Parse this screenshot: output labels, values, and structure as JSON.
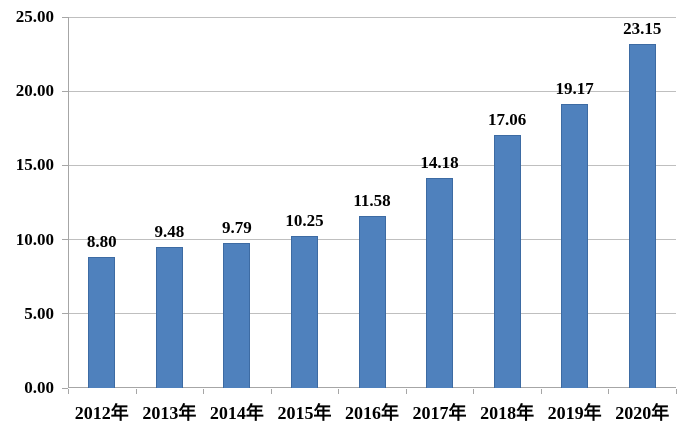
{
  "chart_data": {
    "type": "bar",
    "title": "",
    "xlabel": "",
    "ylabel": "",
    "categories": [
      "2012年",
      "2013年",
      "2014年",
      "2015年",
      "2016年",
      "2017年",
      "2018年",
      "2019年",
      "2020年"
    ],
    "values": [
      8.8,
      9.48,
      9.79,
      10.25,
      11.58,
      14.18,
      17.06,
      19.17,
      23.15
    ],
    "data_labels": [
      "8.80",
      "9.48",
      "9.79",
      "10.25",
      "11.58",
      "14.18",
      "17.06",
      "19.17",
      "23.15"
    ],
    "ylim": [
      0,
      25
    ],
    "ytick_interval": 5,
    "ytick_labels": [
      "0.00",
      "5.00",
      "10.00",
      "15.00",
      "20.00",
      "25.00"
    ],
    "grid": true,
    "legend": false,
    "colors": {
      "bar_fill": "#4F81BD",
      "bar_border": "#3D6BA3",
      "gridline": "#BFBFBF",
      "axis": "#A6A6A6",
      "text": "#000000",
      "background": "#FFFFFF"
    }
  }
}
